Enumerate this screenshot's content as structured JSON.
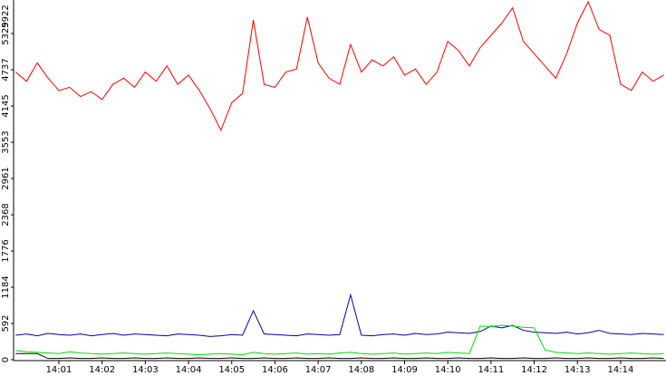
{
  "chart_data": {
    "type": "line",
    "x": [
      0,
      0.25,
      0.5,
      0.75,
      1,
      1.25,
      1.5,
      1.75,
      2,
      2.25,
      2.5,
      2.75,
      3,
      3.25,
      3.5,
      3.75,
      4,
      4.25,
      4.5,
      4.75,
      5,
      5.25,
      5.5,
      5.75,
      6,
      6.25,
      6.5,
      6.75,
      7,
      7.25,
      7.5,
      7.75,
      8,
      8.25,
      8.5,
      8.75,
      9,
      9.25,
      9.5,
      9.75,
      10,
      10.25,
      10.5,
      10.75,
      11,
      11.25,
      11.5,
      11.75,
      12,
      12.25,
      12.5,
      12.75,
      13,
      13.25,
      13.5,
      13.75,
      14,
      14.25,
      14.5,
      14.75,
      15
    ],
    "series": [
      {
        "color": "#ff0000",
        "values": [
          4700,
          4550,
          4850,
          4600,
          4400,
          4450,
          4300,
          4380,
          4250,
          4500,
          4600,
          4450,
          4700,
          4550,
          4800,
          4500,
          4650,
          4400,
          4100,
          3750,
          4200,
          4350,
          5550,
          4500,
          4450,
          4700,
          4750,
          5600,
          4850,
          4600,
          4500,
          5150,
          4700,
          4900,
          4800,
          4950,
          4650,
          4750,
          4500,
          4700,
          5200,
          5050,
          4800,
          5100,
          5300,
          5500,
          5750,
          5200,
          5000,
          4800,
          4600,
          5000,
          5500,
          5850,
          5400,
          5300,
          4500,
          4400,
          4700,
          4550,
          4650
        ]
      },
      {
        "color": "#0000aa",
        "values": [
          400,
          420,
          390,
          430,
          410,
          400,
          420,
          390,
          410,
          430,
          400,
          420,
          410,
          400,
          390,
          420,
          410,
          400,
          380,
          390,
          410,
          400,
          800,
          420,
          410,
          400,
          390,
          420,
          410,
          400,
          410,
          1060,
          400,
          390,
          410,
          420,
          400,
          430,
          410,
          420,
          450,
          440,
          430,
          460,
          550,
          520,
          560,
          480,
          450,
          440,
          430,
          450,
          420,
          440,
          480,
          430,
          420,
          410,
          430,
          420,
          410
        ]
      },
      {
        "color": "#00dd00",
        "values": [
          150,
          130,
          120,
          110,
          100,
          130,
          110,
          100,
          90,
          100,
          110,
          100,
          90,
          100,
          110,
          100,
          90,
          80,
          90,
          100,
          90,
          80,
          120,
          100,
          90,
          100,
          110,
          90,
          100,
          90,
          110,
          120,
          100,
          90,
          100,
          110,
          90,
          100,
          110,
          100,
          120,
          110,
          100,
          550,
          540,
          560,
          550,
          530,
          520,
          160,
          120,
          110,
          100,
          110,
          100,
          90,
          100,
          110,
          100,
          90,
          100
        ]
      },
      {
        "color": "#000000",
        "values": [
          100,
          100,
          100,
          20,
          20,
          30,
          20,
          20,
          30,
          20,
          20,
          30,
          20,
          20,
          30,
          20,
          20,
          30,
          20,
          20,
          30,
          20,
          20,
          30,
          20,
          20,
          30,
          20,
          20,
          30,
          20,
          20,
          30,
          20,
          20,
          30,
          20,
          20,
          30,
          20,
          20,
          30,
          20,
          20,
          30,
          20,
          20,
          30,
          20,
          20,
          30,
          20,
          20,
          30,
          20,
          20,
          30,
          20,
          20,
          30,
          20
        ]
      }
    ],
    "xlim": [
      0,
      15.05
    ],
    "xticks": [
      {
        "value": 1,
        "label": "14:01"
      },
      {
        "value": 2,
        "label": "14:02"
      },
      {
        "value": 3,
        "label": "14:03"
      },
      {
        "value": 4,
        "label": "14:04"
      },
      {
        "value": 5,
        "label": "14:05"
      },
      {
        "value": 6,
        "label": "14:06"
      },
      {
        "value": 7,
        "label": "14:07"
      },
      {
        "value": 8,
        "label": "14:08"
      },
      {
        "value": 9,
        "label": "14:09"
      },
      {
        "value": 10,
        "label": "14:10"
      },
      {
        "value": 11,
        "label": "14:11"
      },
      {
        "value": 12,
        "label": "14:12"
      },
      {
        "value": 13,
        "label": "14:13"
      },
      {
        "value": 14,
        "label": "14:14"
      }
    ],
    "ylim": [
      0,
      5922
    ],
    "yticks": [
      0,
      592,
      1184,
      1776,
      2368,
      2961,
      3553,
      4145,
      4737,
      5329,
      5922
    ],
    "grid": false
  }
}
